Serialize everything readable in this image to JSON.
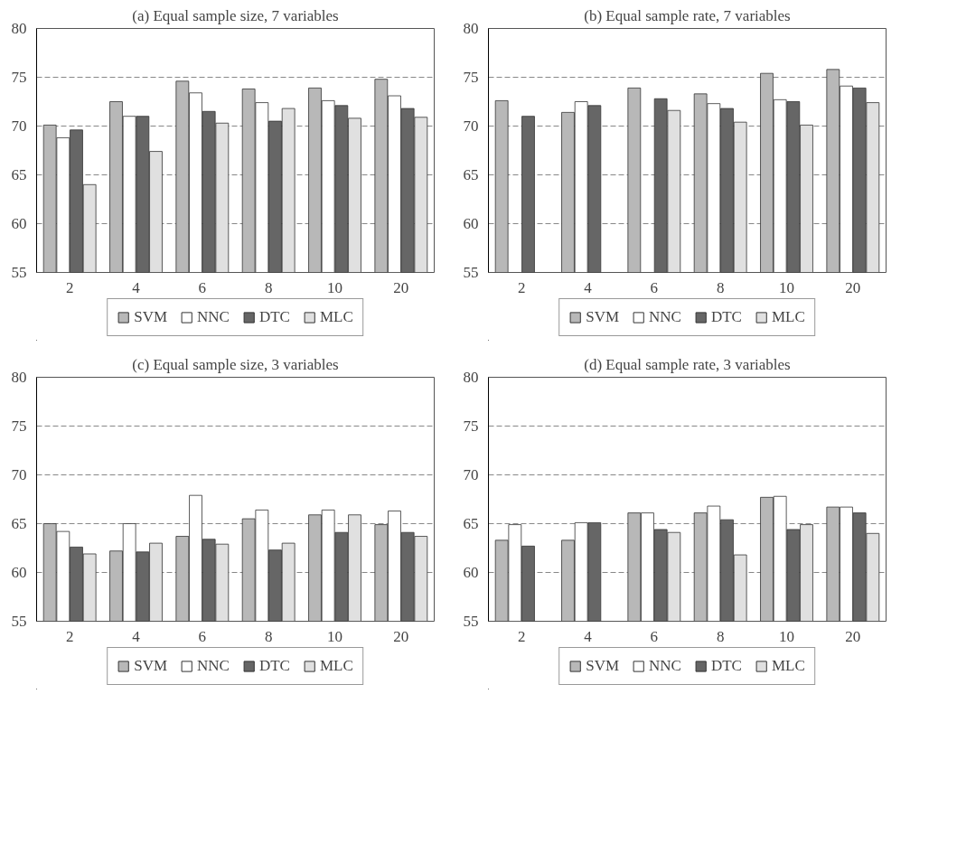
{
  "chart_data": [
    {
      "type": "bar",
      "title": "(a) Equal sample size, 7 variables",
      "categories": [
        "2",
        "4",
        "6",
        "8",
        "10",
        "20"
      ],
      "ylim": [
        55,
        80
      ],
      "yticks": [
        55,
        60,
        65,
        70,
        75,
        80
      ],
      "grid": "y",
      "legend": "bottom",
      "series": [
        {
          "name": "SVM",
          "color": "#b8b8b8",
          "values": [
            70.1,
            72.5,
            74.6,
            73.8,
            73.9,
            74.8
          ]
        },
        {
          "name": "NNC",
          "color": "#ffffff",
          "values": [
            68.8,
            71.0,
            73.4,
            72.4,
            72.6,
            73.1
          ]
        },
        {
          "name": "DTC",
          "color": "#666666",
          "values": [
            69.6,
            71.0,
            71.5,
            70.5,
            72.1,
            71.8
          ]
        },
        {
          "name": "MLC",
          "color": "#e0e0e0",
          "values": [
            64.0,
            67.4,
            70.3,
            71.8,
            70.8,
            70.9
          ]
        }
      ]
    },
    {
      "type": "bar",
      "title": "(b) Equal sample rate, 7 variables",
      "categories": [
        "2",
        "4",
        "6",
        "8",
        "10",
        "20"
      ],
      "ylim": [
        55,
        80
      ],
      "yticks": [
        55,
        60,
        65,
        70,
        75,
        80
      ],
      "grid": "y",
      "legend": "bottom",
      "series": [
        {
          "name": "SVM",
          "color": "#b8b8b8",
          "values": [
            72.6,
            71.4,
            73.9,
            73.3,
            75.4,
            75.8
          ]
        },
        {
          "name": "NNC",
          "color": "#ffffff",
          "values": [
            null,
            72.5,
            null,
            72.3,
            72.7,
            74.1
          ]
        },
        {
          "name": "DTC",
          "color": "#666666",
          "values": [
            71.0,
            72.1,
            72.8,
            71.8,
            72.5,
            73.9
          ]
        },
        {
          "name": "MLC",
          "color": "#e0e0e0",
          "values": [
            null,
            null,
            71.6,
            70.4,
            70.1,
            72.4
          ]
        }
      ]
    },
    {
      "type": "bar",
      "title": "(c) Equal sample size, 3 variables",
      "categories": [
        "2",
        "4",
        "6",
        "8",
        "10",
        "20"
      ],
      "ylim": [
        55,
        80
      ],
      "yticks": [
        55,
        60,
        65,
        70,
        75,
        80
      ],
      "grid": "y",
      "legend": "bottom",
      "series": [
        {
          "name": "SVM",
          "color": "#b8b8b8",
          "values": [
            65.0,
            62.2,
            63.7,
            65.5,
            65.9,
            64.9
          ]
        },
        {
          "name": "NNC",
          "color": "#ffffff",
          "values": [
            64.2,
            65.0,
            67.9,
            66.4,
            66.4,
            66.3
          ]
        },
        {
          "name": "DTC",
          "color": "#666666",
          "values": [
            62.6,
            62.1,
            63.4,
            62.3,
            64.1,
            64.1
          ]
        },
        {
          "name": "MLC",
          "color": "#e0e0e0",
          "values": [
            61.9,
            63.0,
            62.9,
            63.0,
            65.9,
            63.7
          ]
        }
      ]
    },
    {
      "type": "bar",
      "title": "(d) Equal sample rate, 3 variables",
      "categories": [
        "2",
        "4",
        "6",
        "8",
        "10",
        "20"
      ],
      "ylim": [
        55,
        80
      ],
      "yticks": [
        55,
        60,
        65,
        70,
        75,
        80
      ],
      "grid": "y",
      "legend": "bottom",
      "series": [
        {
          "name": "SVM",
          "color": "#b8b8b8",
          "values": [
            63.3,
            63.3,
            66.1,
            66.1,
            67.7,
            66.7
          ]
        },
        {
          "name": "NNC",
          "color": "#ffffff",
          "values": [
            64.9,
            65.1,
            66.1,
            66.8,
            67.8,
            66.7
          ]
        },
        {
          "name": "DTC",
          "color": "#666666",
          "values": [
            62.7,
            65.1,
            64.4,
            65.4,
            64.4,
            66.1
          ]
        },
        {
          "name": "MLC",
          "color": "#e0e0e0",
          "values": [
            null,
            null,
            64.1,
            61.8,
            64.9,
            64.0
          ]
        }
      ]
    }
  ]
}
